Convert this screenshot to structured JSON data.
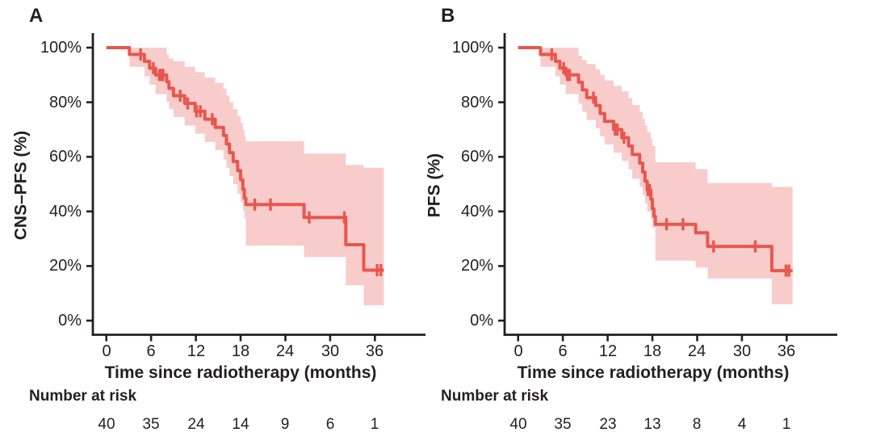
{
  "colors": {
    "line": "#e7574e",
    "band": "rgba(231,87,78,0.30)",
    "axis": "#231f20",
    "text": "#231f20",
    "background": "#ffffff"
  },
  "chart_data": [
    {
      "type": "line",
      "chart_kind": "kaplan-meier",
      "panel_label": "A",
      "ylabel": "CNS–PFS (%)",
      "xlabel": "Time since radiotherapy (months)",
      "x_ticks": [
        0,
        6,
        12,
        18,
        24,
        30,
        36
      ],
      "y_ticks": [
        0,
        20,
        40,
        60,
        80,
        100
      ],
      "y_tick_suffix": "%",
      "xlim": [
        0,
        43
      ],
      "ylim": [
        0,
        100
      ],
      "grid": false,
      "legend": false,
      "km_steps": [
        [
          0,
          100
        ],
        [
          3.1,
          97.5
        ],
        [
          5.1,
          95
        ],
        [
          5.8,
          92.5
        ],
        [
          6.6,
          90
        ],
        [
          8.1,
          87.5
        ],
        [
          8.4,
          85.1
        ],
        [
          9,
          82.4
        ],
        [
          10.5,
          79.6
        ],
        [
          11.9,
          76.7
        ],
        [
          13.2,
          73.8
        ],
        [
          14.6,
          70.8
        ],
        [
          15.7,
          67.8
        ],
        [
          16.1,
          64.7
        ],
        [
          16.5,
          61.5
        ],
        [
          17,
          58.3
        ],
        [
          17.6,
          55
        ],
        [
          18,
          51.6
        ],
        [
          18.3,
          48.1
        ],
        [
          18.5,
          44.9
        ],
        [
          18.7,
          42.5
        ],
        [
          26.5,
          37.8
        ],
        [
          32.1,
          27.8
        ],
        [
          34.5,
          18.5
        ]
      ],
      "curve_end": 37.2,
      "censors": [
        [
          4.6,
          97.5
        ],
        [
          6.3,
          92.5
        ],
        [
          7.1,
          90
        ],
        [
          7.35,
          90
        ],
        [
          7.6,
          90
        ],
        [
          9.9,
          82.4
        ],
        [
          10.9,
          79.6
        ],
        [
          12.1,
          76.7
        ],
        [
          12.6,
          76.7
        ],
        [
          14.2,
          73.8
        ],
        [
          19.9,
          42.5
        ],
        [
          22,
          42.5
        ],
        [
          27.2,
          37.8
        ],
        [
          31.9,
          37.8
        ],
        [
          36.3,
          18.5
        ],
        [
          36.8,
          18.5
        ]
      ],
      "band": [
        [
          3.1,
          93,
          100
        ],
        [
          5.1,
          89.5,
          100
        ],
        [
          5.8,
          86.5,
          100
        ],
        [
          6.6,
          83,
          100
        ],
        [
          8.1,
          80,
          97.5
        ],
        [
          8.4,
          77.5,
          96
        ],
        [
          9,
          74.6,
          95
        ],
        [
          10.5,
          71.5,
          93
        ],
        [
          11.9,
          68.5,
          91
        ],
        [
          13.2,
          65.5,
          89
        ],
        [
          14.6,
          62.5,
          87
        ],
        [
          15.7,
          59,
          85
        ],
        [
          16.1,
          56,
          82.5
        ],
        [
          16.5,
          53,
          80
        ],
        [
          17,
          50,
          77.5
        ],
        [
          17.6,
          46.5,
          75
        ],
        [
          18,
          43.5,
          72.5
        ],
        [
          18.3,
          40.5,
          70
        ],
        [
          18.5,
          37.5,
          67.5
        ],
        [
          18.7,
          27.5,
          65.7
        ],
        [
          26.5,
          23.3,
          61.2
        ],
        [
          32.1,
          13,
          57
        ],
        [
          34.5,
          5.6,
          56
        ]
      ],
      "number_at_risk": {
        "label": "Number at risk",
        "times": [
          0,
          6,
          12,
          18,
          24,
          30,
          36
        ],
        "values": [
          40,
          35,
          24,
          14,
          9,
          6,
          1
        ]
      }
    },
    {
      "type": "line",
      "chart_kind": "kaplan-meier",
      "panel_label": "B",
      "ylabel": "PFS (%)",
      "xlabel": "Time since radiotherapy (months)",
      "x_ticks": [
        0,
        6,
        12,
        18,
        24,
        30,
        36
      ],
      "y_ticks": [
        0,
        20,
        40,
        60,
        80,
        100
      ],
      "y_tick_suffix": "%",
      "xlim": [
        0,
        43
      ],
      "ylim": [
        0,
        100
      ],
      "grid": false,
      "legend": false,
      "km_steps": [
        [
          0,
          100
        ],
        [
          3,
          97.5
        ],
        [
          5,
          95
        ],
        [
          5.6,
          92.5
        ],
        [
          6.4,
          90
        ],
        [
          8.1,
          87.3
        ],
        [
          8.6,
          84.5
        ],
        [
          9.2,
          81.7
        ],
        [
          10.4,
          78.8
        ],
        [
          11,
          75.9
        ],
        [
          11.6,
          73
        ],
        [
          12.8,
          70
        ],
        [
          13.9,
          67
        ],
        [
          14.8,
          64
        ],
        [
          15.3,
          60.9
        ],
        [
          16.3,
          57.7
        ],
        [
          16.7,
          54.4
        ],
        [
          17,
          51.1
        ],
        [
          17.3,
          47.8
        ],
        [
          17.8,
          44.4
        ],
        [
          18,
          41
        ],
        [
          18.2,
          38.2
        ],
        [
          18.4,
          35.3
        ],
        [
          23.8,
          32.2
        ],
        [
          25.4,
          27.2
        ],
        [
          34,
          18.3
        ]
      ],
      "curve_end": 36.8,
      "censors": [
        [
          4.5,
          97.5
        ],
        [
          6.1,
          92.5
        ],
        [
          6.6,
          90
        ],
        [
          6.9,
          90
        ],
        [
          10.1,
          81.7
        ],
        [
          13,
          70
        ],
        [
          13.3,
          70
        ],
        [
          14.2,
          67
        ],
        [
          17.4,
          47.8
        ],
        [
          17.65,
          47.8
        ],
        [
          19.9,
          35.3
        ],
        [
          22.1,
          35.3
        ],
        [
          26.2,
          27.2
        ],
        [
          31.8,
          27.2
        ],
        [
          35.9,
          18.3
        ],
        [
          36.3,
          18.3
        ]
      ],
      "band": [
        [
          3,
          93,
          100
        ],
        [
          5,
          89.5,
          100
        ],
        [
          5.6,
          86.5,
          100
        ],
        [
          6.4,
          83,
          100
        ],
        [
          8.1,
          79.5,
          97
        ],
        [
          8.6,
          76.5,
          95.5
        ],
        [
          9.2,
          73.5,
          94
        ],
        [
          10.4,
          70.5,
          92
        ],
        [
          11,
          67.5,
          90
        ],
        [
          11.6,
          64.5,
          88
        ],
        [
          12.8,
          61.5,
          86
        ],
        [
          13.9,
          58.5,
          84
        ],
        [
          14.8,
          55.5,
          81.5
        ],
        [
          15.3,
          52,
          79
        ],
        [
          16.3,
          49,
          76.5
        ],
        [
          16.7,
          46,
          74
        ],
        [
          17,
          43,
          71.5
        ],
        [
          17.3,
          40,
          69
        ],
        [
          17.8,
          37,
          66.5
        ],
        [
          18,
          34,
          64
        ],
        [
          18.4,
          22,
          58
        ],
        [
          23.8,
          19.5,
          55.5
        ],
        [
          25.4,
          15.4,
          50.4
        ],
        [
          34,
          6,
          49
        ]
      ],
      "number_at_risk": {
        "label": "Number at risk",
        "times": [
          0,
          6,
          12,
          18,
          24,
          30,
          36
        ],
        "values": [
          40,
          35,
          23,
          13,
          8,
          4,
          1
        ]
      }
    }
  ]
}
